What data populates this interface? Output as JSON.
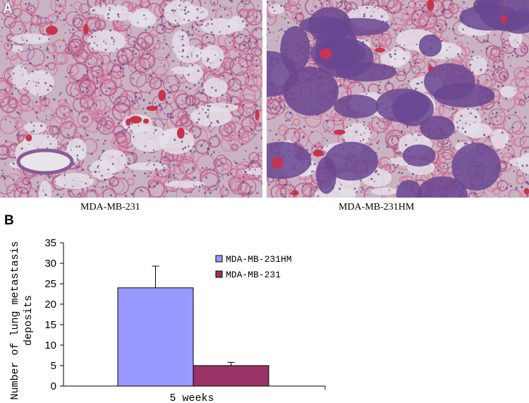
{
  "panel_a": {
    "letter": "A",
    "left_caption": "MDA-MB-231",
    "right_caption": "MDA-MB-231HM"
  },
  "panel_b": {
    "letter": "B"
  },
  "colors": {
    "tissue_background": "#c9b3c2",
    "tissue_pink": "#d67a9c",
    "tissue_purple": "#6a4790",
    "vessel_red": "#c8344d",
    "bar_hm": "#9999ff",
    "bar_231": "#993366"
  },
  "chart_data": {
    "type": "bar",
    "categories": [
      "5 weeks"
    ],
    "series": [
      {
        "name": "MDA-MB-231HM",
        "values": [
          24
        ],
        "error": [
          5.3
        ],
        "color": "#9999ff"
      },
      {
        "name": "MDA-MB-231",
        "values": [
          5
        ],
        "error": [
          0.8
        ],
        "color": "#993366"
      }
    ],
    "ylabel": "Number of lung metastasis deposits",
    "ylabel_lines": [
      "Number of lung metastasis",
      "deposits"
    ],
    "yticks": [
      0,
      5,
      10,
      15,
      20,
      25,
      30,
      35
    ],
    "ylim": [
      0,
      35
    ],
    "legend_position": "top-right",
    "grid": false
  }
}
